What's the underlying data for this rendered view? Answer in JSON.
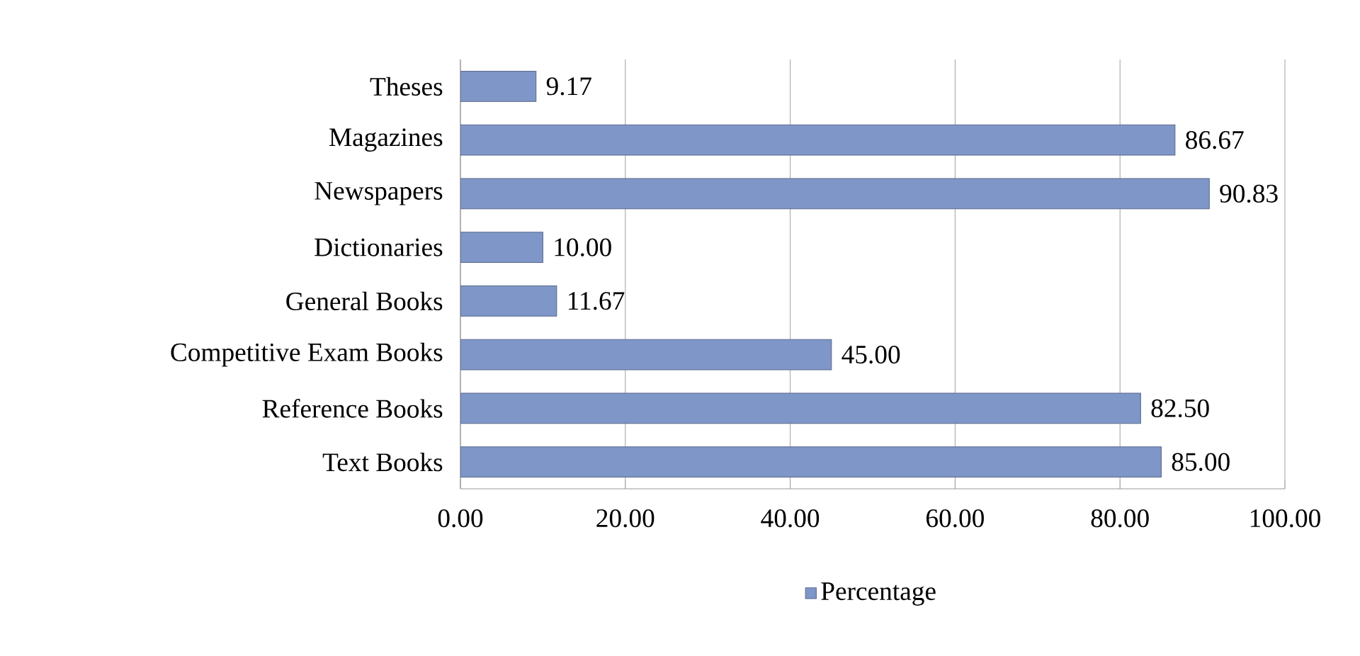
{
  "chart_data": {
    "type": "bar",
    "orientation": "horizontal",
    "categories": [
      "Theses",
      "Magazines",
      "Newspapers",
      "Dictionaries",
      "General Books",
      "Competitive Exam Books",
      "Reference Books",
      "Text Books"
    ],
    "series": [
      {
        "name": "Percentage",
        "color": "#7f96c8",
        "values": [
          9.17,
          86.67,
          90.83,
          10.0,
          11.67,
          45.0,
          82.5,
          85.0
        ],
        "value_labels": [
          "9.17",
          "86.67",
          "90.83",
          "10.00",
          "11.67",
          "45.00",
          "82.50",
          "85.00"
        ]
      }
    ],
    "xlim": [
      0,
      100
    ],
    "xticks": [
      {
        "value": 0,
        "label": "0.00"
      },
      {
        "value": 20,
        "label": "20.00"
      },
      {
        "value": 40,
        "label": "40.00"
      },
      {
        "value": 60,
        "label": "60.00"
      },
      {
        "value": 80,
        "label": "80.00"
      },
      {
        "value": 100,
        "label": "100.00"
      }
    ],
    "grid": "x",
    "legend": "bottom"
  }
}
